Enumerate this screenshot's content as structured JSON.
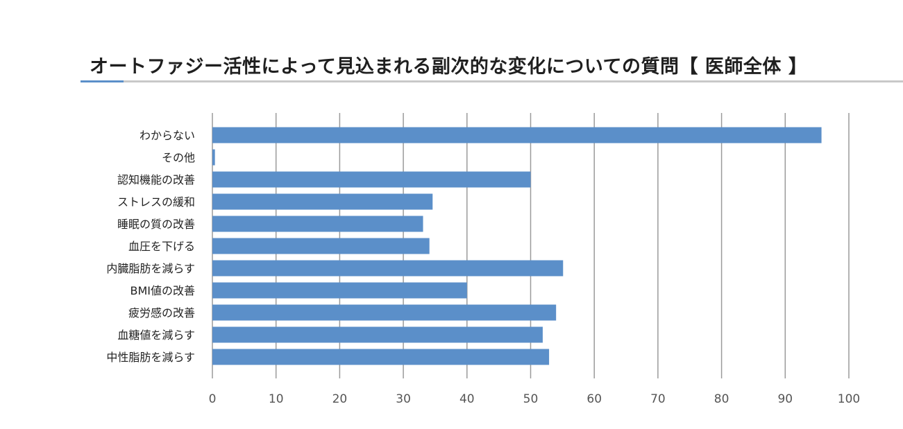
{
  "chart_data": {
    "type": "bar",
    "orientation": "horizontal",
    "title": "オートファジー活性によって見込まれる副次的な変化についての質問【 医師全体 】",
    "xlabel": "",
    "ylabel": "",
    "categories": [
      "わからない",
      "その他",
      "認知機能の改善",
      "ストレスの緩和",
      "睡眠の質の改善",
      "血圧を下げる",
      "内臓脂肪を減らす",
      "BMI値の改善",
      "疲労感の改善",
      "血糖値を減らす",
      "中性脂肪を減らす"
    ],
    "values": [
      95.7,
      0.4,
      50.0,
      34.6,
      33.1,
      34.1,
      55.1,
      40.0,
      54.0,
      51.9,
      52.9
    ],
    "xlim": [
      0,
      100
    ],
    "xticks": [
      0,
      10,
      20,
      30,
      40,
      50,
      60,
      70,
      80,
      90,
      100
    ],
    "grid": "vertical",
    "legend": "none",
    "colors": {
      "bar": "#5b8fc9",
      "grid": "#9a9a9a",
      "accent": "#5b8fc9",
      "rule": "#c8c8c8"
    }
  }
}
